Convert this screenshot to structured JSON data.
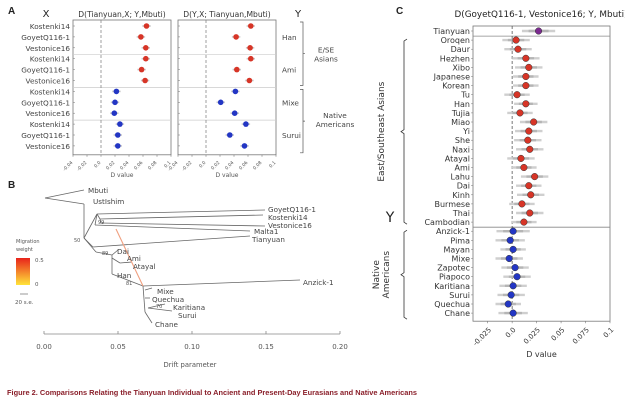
{
  "caption": "Figure 2.  Comparisons Relating the Tianyuan Individual to Ancient and Present-Day Eurasians and Native Americans",
  "colors": {
    "asian": "#d73527",
    "native": "#2336c4",
    "tianyuan": "#7b2a8f",
    "migration_high": "#e8231b",
    "migration_low": "#ffe43a",
    "caption": "#8a1f2a"
  },
  "chart_data": [
    {
      "id": "A",
      "panel_letter": "A",
      "type": "scatter",
      "x_group_label": "X",
      "y_group_label": "Y",
      "xlabel": "D value",
      "xlim": [
        -0.04,
        0.1
      ],
      "xticks": [
        "-0.04",
        "-0.02",
        "0.0",
        "0.02",
        "0.04",
        "0.06",
        "0.08",
        "0.1"
      ],
      "row_labels": [
        "Kostenki14",
        "GoyetQ116-1",
        "Vestonice16",
        "Kostenki14",
        "GoyetQ116-1",
        "Vestonice16",
        "Kostenki14",
        "GoyetQ116-1",
        "Vestonice16",
        "Kostenki14",
        "GoyetQ116-1",
        "Vestonice16"
      ],
      "y_populations": [
        "Han",
        "Ami",
        "Mixe",
        "Surui"
      ],
      "groups": [
        {
          "name": "E/SE Asians",
          "rows": [
            0,
            1,
            2,
            3,
            4,
            5
          ],
          "color": "asian"
        },
        {
          "name": "Native Americans",
          "rows": [
            6,
            7,
            8,
            9,
            10,
            11
          ],
          "color": "native"
        }
      ],
      "subplots": [
        {
          "title": "D(Tianyuan,X; Y,Mbuti)",
          "values": [
            0.065,
            0.057,
            0.064,
            0.064,
            0.058,
            0.063,
            0.022,
            0.02,
            0.019,
            0.027,
            0.024,
            0.024
          ],
          "errors": [
            0.006,
            0.006,
            0.006,
            0.006,
            0.006,
            0.006,
            0.006,
            0.006,
            0.006,
            0.006,
            0.006,
            0.006
          ]
        },
        {
          "title": "D(Y,X; Tianyuan,Mbuti)",
          "values": [
            0.064,
            0.043,
            0.063,
            0.064,
            0.044,
            0.062,
            0.042,
            0.021,
            0.041,
            0.057,
            0.034,
            0.055
          ],
          "errors": [
            0.006,
            0.006,
            0.006,
            0.006,
            0.006,
            0.006,
            0.006,
            0.006,
            0.006,
            0.006,
            0.006,
            0.006
          ]
        }
      ]
    },
    {
      "id": "B",
      "panel_letter": "B",
      "type": "tree",
      "xlabel": "Drift parameter",
      "xlim": [
        0.0,
        0.2
      ],
      "xticks": [
        "0.00",
        "0.05",
        "0.10",
        "0.15",
        "0.20"
      ],
      "legend": {
        "title_line1": "Migration",
        "title_line2": "weight",
        "max_label": "0.5",
        "min_label": "0",
        "scale_label": "20 s.e."
      },
      "leaves": [
        "Mbuti",
        "UstIshim",
        "GoyetQ116-1",
        "Kostenki14",
        "Vestonice16",
        "Malta1",
        "Tianyuan",
        "Dai",
        "Ami",
        "Atayal",
        "Han",
        "Anzick-1",
        "Mixe",
        "Quechua",
        "Karitiana",
        "Surui",
        "Chane"
      ],
      "bootstrap_labels": [
        "99",
        "50",
        "89",
        "81",
        "70"
      ],
      "migration_edge": {
        "from": "Malta1 lineage",
        "to": "Native American ancestor"
      }
    },
    {
      "id": "C",
      "panel_letter": "C",
      "type": "scatter",
      "title": "D(GoyetQ116-1, Vestonice16; Y, Mbuti)",
      "y_group_label": "Y",
      "xlabel": "D value",
      "xlim": [
        -0.04,
        0.1
      ],
      "xticks": [
        "-0.025",
        "0.0",
        "0.025",
        "0.05",
        "0.075",
        "0.1"
      ],
      "groups": [
        {
          "name": "East/Southeast Asians",
          "color": "asian"
        },
        {
          "name": "Native Americans",
          "color": "native"
        }
      ],
      "points": [
        {
          "label": "Tianyuan",
          "value": 0.027,
          "err": 0.017,
          "group": "tianyuan"
        },
        {
          "label": "Oroqen",
          "value": 0.004,
          "err": 0.014,
          "group": "asian"
        },
        {
          "label": "Daur",
          "value": 0.006,
          "err": 0.014,
          "group": "asian"
        },
        {
          "label": "Hezhen",
          "value": 0.014,
          "err": 0.014,
          "group": "asian"
        },
        {
          "label": "Xibo",
          "value": 0.017,
          "err": 0.014,
          "group": "asian"
        },
        {
          "label": "Japanese",
          "value": 0.014,
          "err": 0.013,
          "group": "asian"
        },
        {
          "label": "Korean",
          "value": 0.014,
          "err": 0.013,
          "group": "asian"
        },
        {
          "label": "Tu",
          "value": 0.005,
          "err": 0.013,
          "group": "asian"
        },
        {
          "label": "Han",
          "value": 0.014,
          "err": 0.012,
          "group": "asian"
        },
        {
          "label": "Tujia",
          "value": 0.008,
          "err": 0.013,
          "group": "asian"
        },
        {
          "label": "Miao",
          "value": 0.022,
          "err": 0.014,
          "group": "asian"
        },
        {
          "label": "Yi",
          "value": 0.017,
          "err": 0.014,
          "group": "asian"
        },
        {
          "label": "She",
          "value": 0.016,
          "err": 0.014,
          "group": "asian"
        },
        {
          "label": "Naxi",
          "value": 0.018,
          "err": 0.014,
          "group": "asian"
        },
        {
          "label": "Atayal",
          "value": 0.009,
          "err": 0.014,
          "group": "asian"
        },
        {
          "label": "Ami",
          "value": 0.012,
          "err": 0.013,
          "group": "asian"
        },
        {
          "label": "Lahu",
          "value": 0.023,
          "err": 0.014,
          "group": "asian"
        },
        {
          "label": "Dai",
          "value": 0.017,
          "err": 0.013,
          "group": "asian"
        },
        {
          "label": "Kinh",
          "value": 0.019,
          "err": 0.014,
          "group": "asian"
        },
        {
          "label": "Burmese",
          "value": 0.01,
          "err": 0.013,
          "group": "asian"
        },
        {
          "label": "Thai",
          "value": 0.018,
          "err": 0.014,
          "group": "asian"
        },
        {
          "label": "Cambodian",
          "value": 0.012,
          "err": 0.013,
          "group": "asian"
        },
        {
          "label": "Anzick-1",
          "value": 0.001,
          "err": 0.017,
          "group": "native"
        },
        {
          "label": "Pima",
          "value": -0.002,
          "err": 0.015,
          "group": "native"
        },
        {
          "label": "Mayan",
          "value": 0.001,
          "err": 0.013,
          "group": "native"
        },
        {
          "label": "Mixe",
          "value": -0.003,
          "err": 0.014,
          "group": "native"
        },
        {
          "label": "Zapotec",
          "value": 0.003,
          "err": 0.014,
          "group": "native"
        },
        {
          "label": "Piapoco",
          "value": 0.005,
          "err": 0.014,
          "group": "native"
        },
        {
          "label": "Karitiana",
          "value": 0.001,
          "err": 0.014,
          "group": "native"
        },
        {
          "label": "Surui",
          "value": -0.001,
          "err": 0.014,
          "group": "native"
        },
        {
          "label": "Quechua",
          "value": -0.004,
          "err": 0.013,
          "group": "native"
        },
        {
          "label": "Chane",
          "value": 0.001,
          "err": 0.015,
          "group": "native"
        }
      ]
    }
  ]
}
